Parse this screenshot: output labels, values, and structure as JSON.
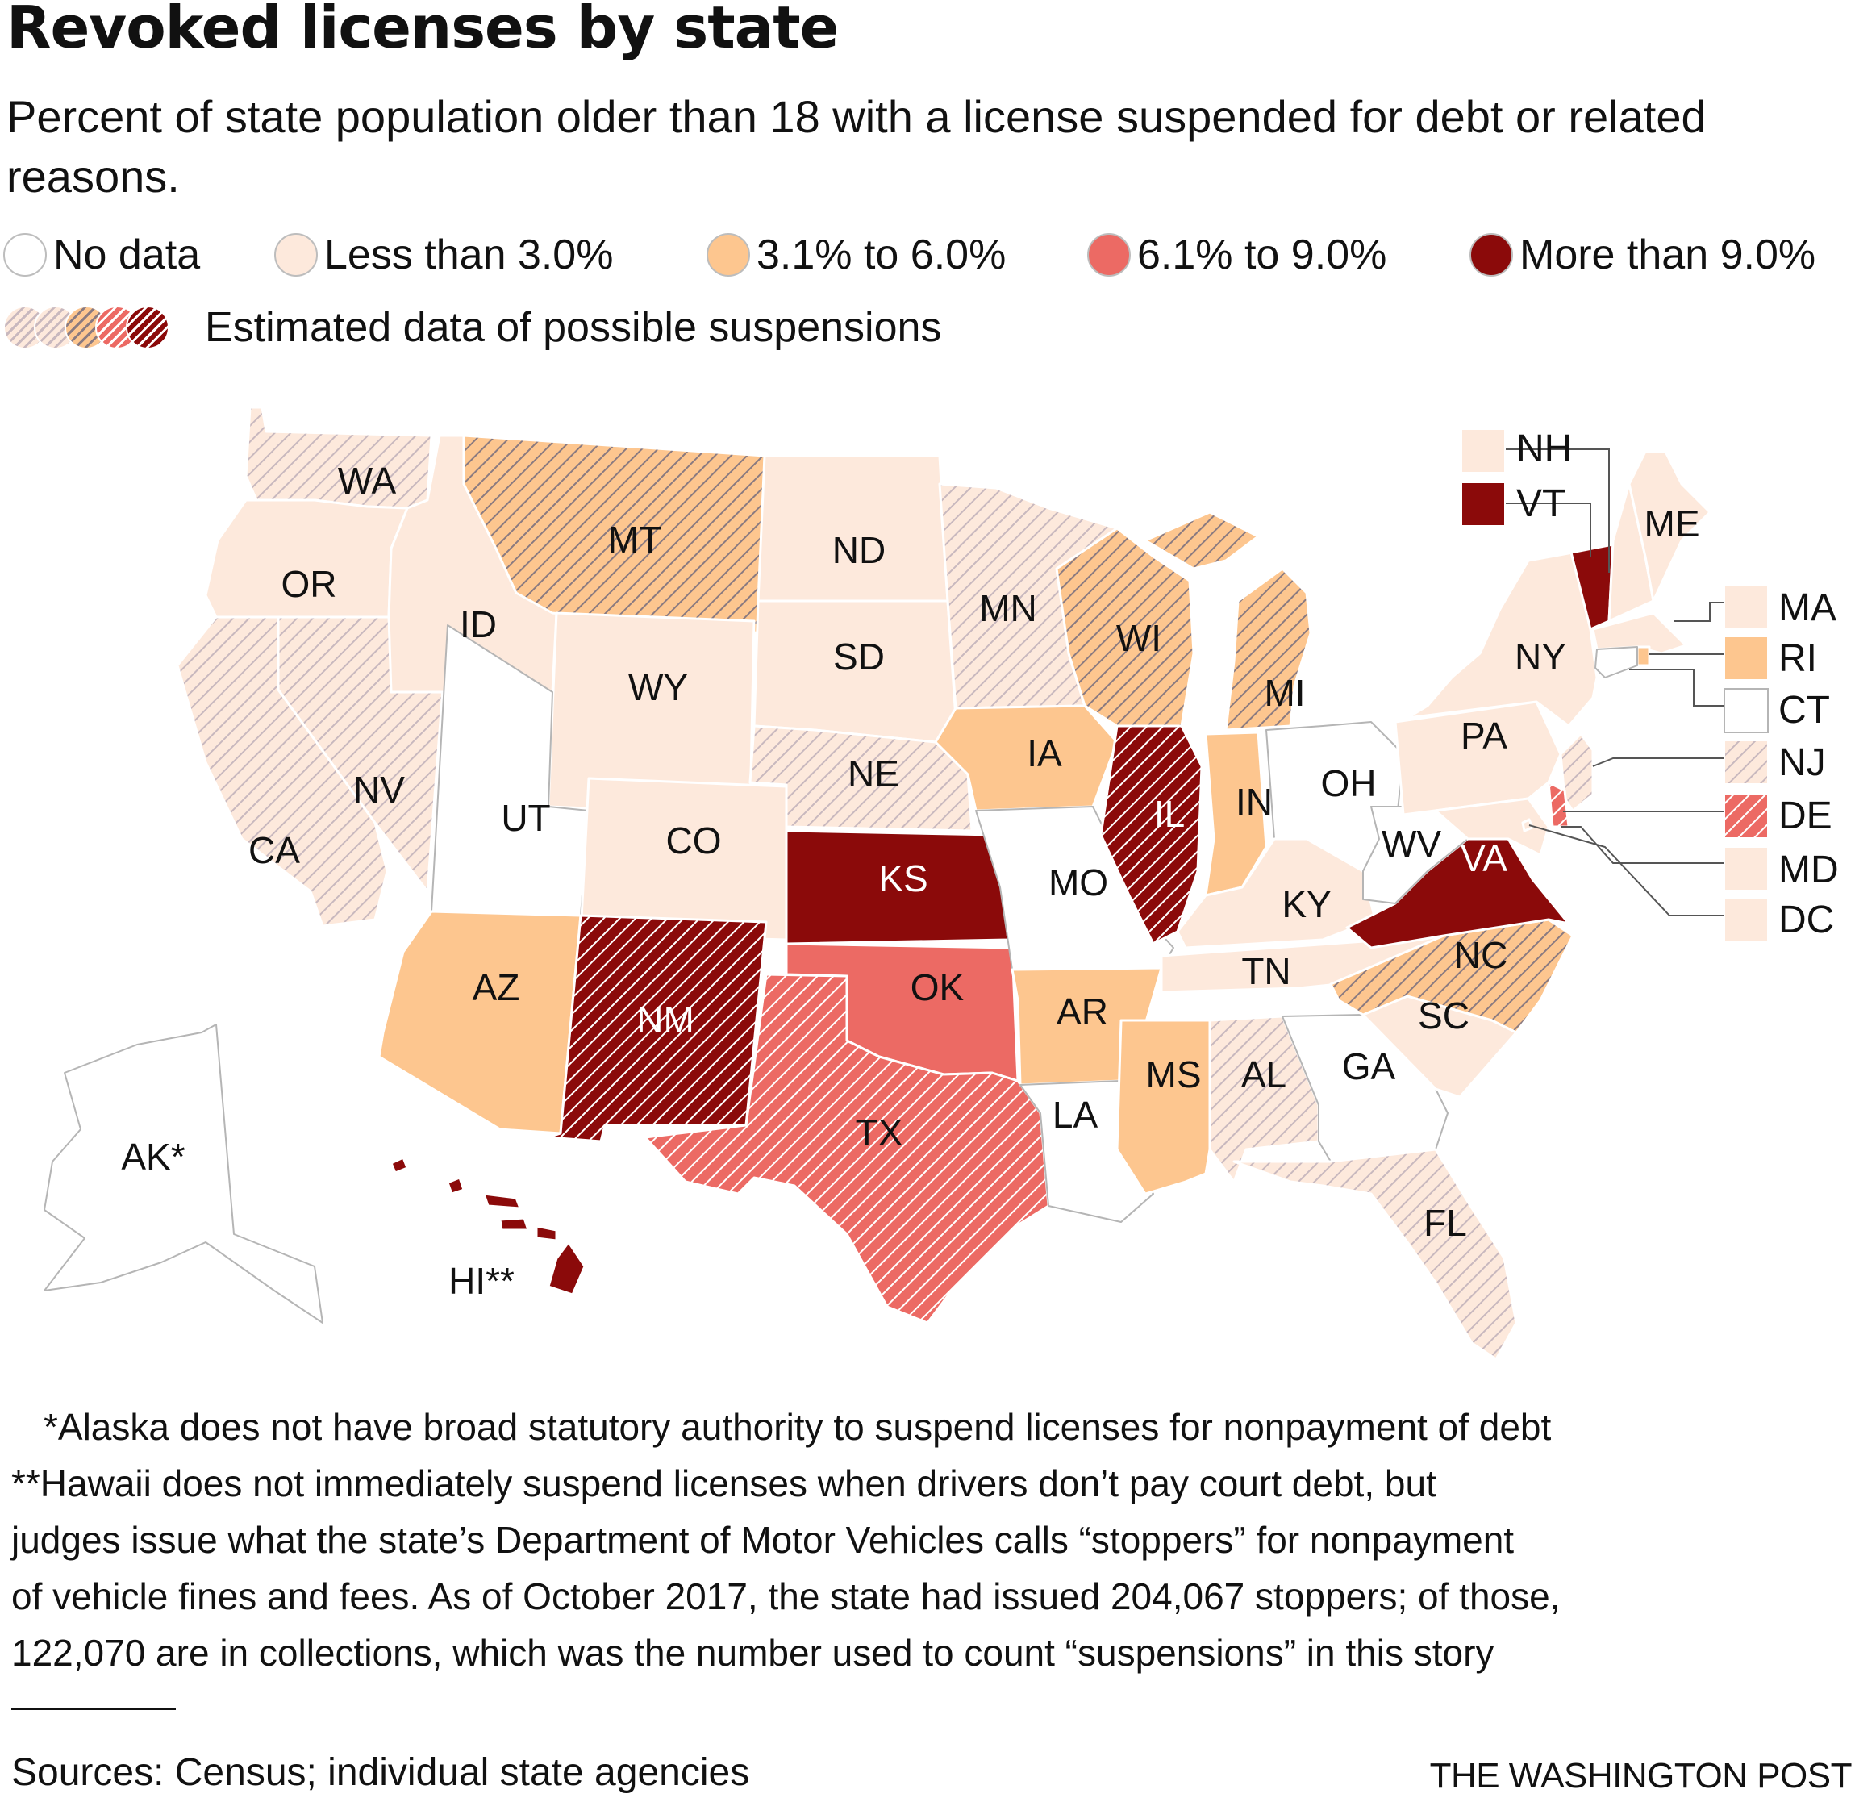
{
  "title": "Revoked licenses by state",
  "subtitle": "Percent of state population older than 18 with a license suspended for debt or related reasons.",
  "legend": {
    "items": [
      {
        "label": "No data",
        "color": "#ffffff"
      },
      {
        "label": "Less than 3.0%",
        "color": "#fde9dc"
      },
      {
        "label": "3.1% to 6.0%",
        "color": "#fdc68f"
      },
      {
        "label": "6.1% to 9.0%",
        "color": "#ec6a64"
      },
      {
        "label": "More than 9.0%",
        "color": "#8b0a0a"
      }
    ],
    "estimated_label": "Estimated data of possible suspensions"
  },
  "states": [
    {
      "abbr": "WA",
      "category": "Less than 3.0%",
      "estimated": true
    },
    {
      "abbr": "OR",
      "category": "Less than 3.0%",
      "estimated": false
    },
    {
      "abbr": "CA",
      "category": "Less than 3.0%",
      "estimated": true
    },
    {
      "abbr": "NV",
      "category": "Less than 3.0%",
      "estimated": true
    },
    {
      "abbr": "ID",
      "category": "Less than 3.0%",
      "estimated": false
    },
    {
      "abbr": "MT",
      "category": "3.1% to 6.0%",
      "estimated": true
    },
    {
      "abbr": "WY",
      "category": "Less than 3.0%",
      "estimated": false
    },
    {
      "abbr": "UT",
      "category": "No data",
      "estimated": false
    },
    {
      "abbr": "CO",
      "category": "Less than 3.0%",
      "estimated": false
    },
    {
      "abbr": "AZ",
      "category": "3.1% to 6.0%",
      "estimated": false
    },
    {
      "abbr": "NM",
      "category": "More than 9.0%",
      "estimated": true
    },
    {
      "abbr": "ND",
      "category": "Less than 3.0%",
      "estimated": false
    },
    {
      "abbr": "SD",
      "category": "Less than 3.0%",
      "estimated": false
    },
    {
      "abbr": "NE",
      "category": "Less than 3.0%",
      "estimated": true
    },
    {
      "abbr": "KS",
      "category": "More than 9.0%",
      "estimated": false
    },
    {
      "abbr": "OK",
      "category": "6.1% to 9.0%",
      "estimated": false
    },
    {
      "abbr": "TX",
      "category": "6.1% to 9.0%",
      "estimated": true
    },
    {
      "abbr": "MN",
      "category": "Less than 3.0%",
      "estimated": true
    },
    {
      "abbr": "IA",
      "category": "3.1% to 6.0%",
      "estimated": false
    },
    {
      "abbr": "MO",
      "category": "No data",
      "estimated": false
    },
    {
      "abbr": "AR",
      "category": "3.1% to 6.0%",
      "estimated": false
    },
    {
      "abbr": "LA",
      "category": "No data",
      "estimated": false
    },
    {
      "abbr": "WI",
      "category": "3.1% to 6.0%",
      "estimated": true
    },
    {
      "abbr": "IL",
      "category": "More than 9.0%",
      "estimated": true
    },
    {
      "abbr": "MI",
      "category": "3.1% to 6.0%",
      "estimated": true
    },
    {
      "abbr": "IN",
      "category": "3.1% to 6.0%",
      "estimated": false
    },
    {
      "abbr": "OH",
      "category": "No data",
      "estimated": false
    },
    {
      "abbr": "KY",
      "category": "Less than 3.0%",
      "estimated": false
    },
    {
      "abbr": "TN",
      "category": "Less than 3.0%",
      "estimated": false
    },
    {
      "abbr": "MS",
      "category": "3.1% to 6.0%",
      "estimated": false
    },
    {
      "abbr": "AL",
      "category": "Less than 3.0%",
      "estimated": true
    },
    {
      "abbr": "GA",
      "category": "No data",
      "estimated": false
    },
    {
      "abbr": "FL",
      "category": "Less than 3.0%",
      "estimated": true
    },
    {
      "abbr": "SC",
      "category": "Less than 3.0%",
      "estimated": false
    },
    {
      "abbr": "NC",
      "category": "3.1% to 6.0%",
      "estimated": true
    },
    {
      "abbr": "VA",
      "category": "More than 9.0%",
      "estimated": false
    },
    {
      "abbr": "WV",
      "category": "No data",
      "estimated": false
    },
    {
      "abbr": "PA",
      "category": "Less than 3.0%",
      "estimated": false
    },
    {
      "abbr": "NY",
      "category": "Less than 3.0%",
      "estimated": false
    },
    {
      "abbr": "VT",
      "category": "More than 9.0%",
      "estimated": false
    },
    {
      "abbr": "NH",
      "category": "Less than 3.0%",
      "estimated": false
    },
    {
      "abbr": "ME",
      "category": "Less than 3.0%",
      "estimated": false
    },
    {
      "abbr": "MA",
      "category": "Less than 3.0%",
      "estimated": false
    },
    {
      "abbr": "RI",
      "category": "3.1% to 6.0%",
      "estimated": false
    },
    {
      "abbr": "CT",
      "category": "No data",
      "estimated": false
    },
    {
      "abbr": "NJ",
      "category": "Less than 3.0%",
      "estimated": true
    },
    {
      "abbr": "DE",
      "category": "6.1% to 9.0%",
      "estimated": true
    },
    {
      "abbr": "MD",
      "category": "Less than 3.0%",
      "estimated": false
    },
    {
      "abbr": "DC",
      "category": "Less than 3.0%",
      "estimated": false
    },
    {
      "abbr": "AK*",
      "category": "No data",
      "estimated": false
    },
    {
      "abbr": "HI**",
      "category": "More than 9.0%",
      "estimated": false
    }
  ],
  "notes": [
    "*Alaska does not have broad statutory authority to suspend licenses for nonpayment of debt",
    "**Hawaii does not immediately suspend licenses when drivers don’t pay court debt, but",
    "judges issue what the state’s Department of Motor Vehicles calls “stoppers” for nonpayment",
    "of vehicle fines and fees. As of October 2017, the state had issued 204,067 stoppers; of those,",
    "122,070 are in collections, which was the number used to count “suspensions” in this story"
  ],
  "sources": "Sources: Census; individual state agencies",
  "credit": "THE WASHINGTON POST"
}
